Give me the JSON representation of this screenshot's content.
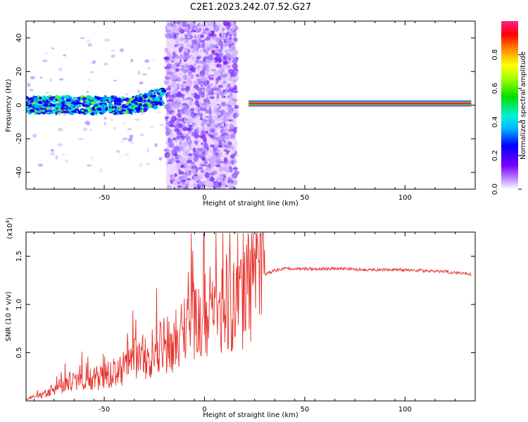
{
  "title": "C2E1.2023.242.07.52.G27",
  "chart_data": [
    {
      "type": "heatmap",
      "xlabel": "Height of straight line (km)",
      "ylabel": "Frequency (Hz)",
      "xlim": [
        -89,
        135
      ],
      "ylim": [
        -50,
        50
      ],
      "xticks": [
        -50,
        0,
        50,
        100
      ],
      "xtick_labels": [
        "-50",
        "0",
        "50",
        "100"
      ],
      "yticks": [
        -40,
        -20,
        0,
        20,
        40
      ],
      "ytick_labels": [
        "-40",
        "-20",
        "0",
        "20",
        "40"
      ],
      "colorbar": {
        "label": "Normalized spectral amplitude",
        "range": [
          0,
          1
        ],
        "ticks": [
          0.0,
          0.2,
          0.4,
          0.6,
          0.8
        ],
        "tick_labels": [
          "0.0",
          "0.2",
          "0.4",
          "0.6",
          "0.8"
        ]
      },
      "features": [
        {
          "desc": "noisy scattered spectrum",
          "x_range": [
            -89,
            -20
          ],
          "freq_center": 0
        },
        {
          "desc": "broad low-amplitude noise band",
          "x_range": [
            -19,
            16
          ],
          "freq_range": [
            -50,
            50
          ]
        },
        {
          "desc": "steady strong tone",
          "x_range": [
            22,
            133
          ],
          "freq": 1,
          "amplitude": 1.0
        }
      ]
    },
    {
      "type": "line",
      "xlabel": "Height of straight line (km)",
      "ylabel": "SNR (10 * v/v)",
      "scale_label": "(x10",
      "scale_exp": "4",
      "ylabel_suffix": ")",
      "xlim": [
        -89,
        135
      ],
      "ylim": [
        0,
        17500
      ],
      "xticks": [
        -50,
        0,
        50,
        100
      ],
      "xtick_labels": [
        "-50",
        "0",
        "50",
        "100"
      ],
      "yticks": [
        5000,
        10000,
        15000
      ],
      "ytick_labels": [
        "0.5",
        "1.0",
        "1.5"
      ],
      "series": [
        {
          "color": "#e8302a",
          "x": [
            -89,
            -80,
            -75,
            -70,
            -65,
            -60,
            -55,
            -50,
            -45,
            -40,
            -35,
            -30,
            -25,
            -20,
            -15,
            -12,
            -10,
            -5,
            0,
            5,
            10,
            15,
            20,
            25,
            30,
            35,
            40,
            50,
            60,
            70,
            80,
            90,
            100,
            110,
            120,
            130,
            133
          ],
          "y": [
            200,
            700,
            1200,
            1800,
            2200,
            2600,
            2400,
            2500,
            2900,
            3400,
            4200,
            4800,
            5300,
            5800,
            6500,
            7000,
            7600,
            8400,
            9100,
            9600,
            10200,
            10900,
            11600,
            12500,
            13100,
            13500,
            13700,
            13700,
            13700,
            13700,
            13600,
            13600,
            13600,
            13500,
            13400,
            13200,
            13100
          ]
        }
      ]
    }
  ]
}
